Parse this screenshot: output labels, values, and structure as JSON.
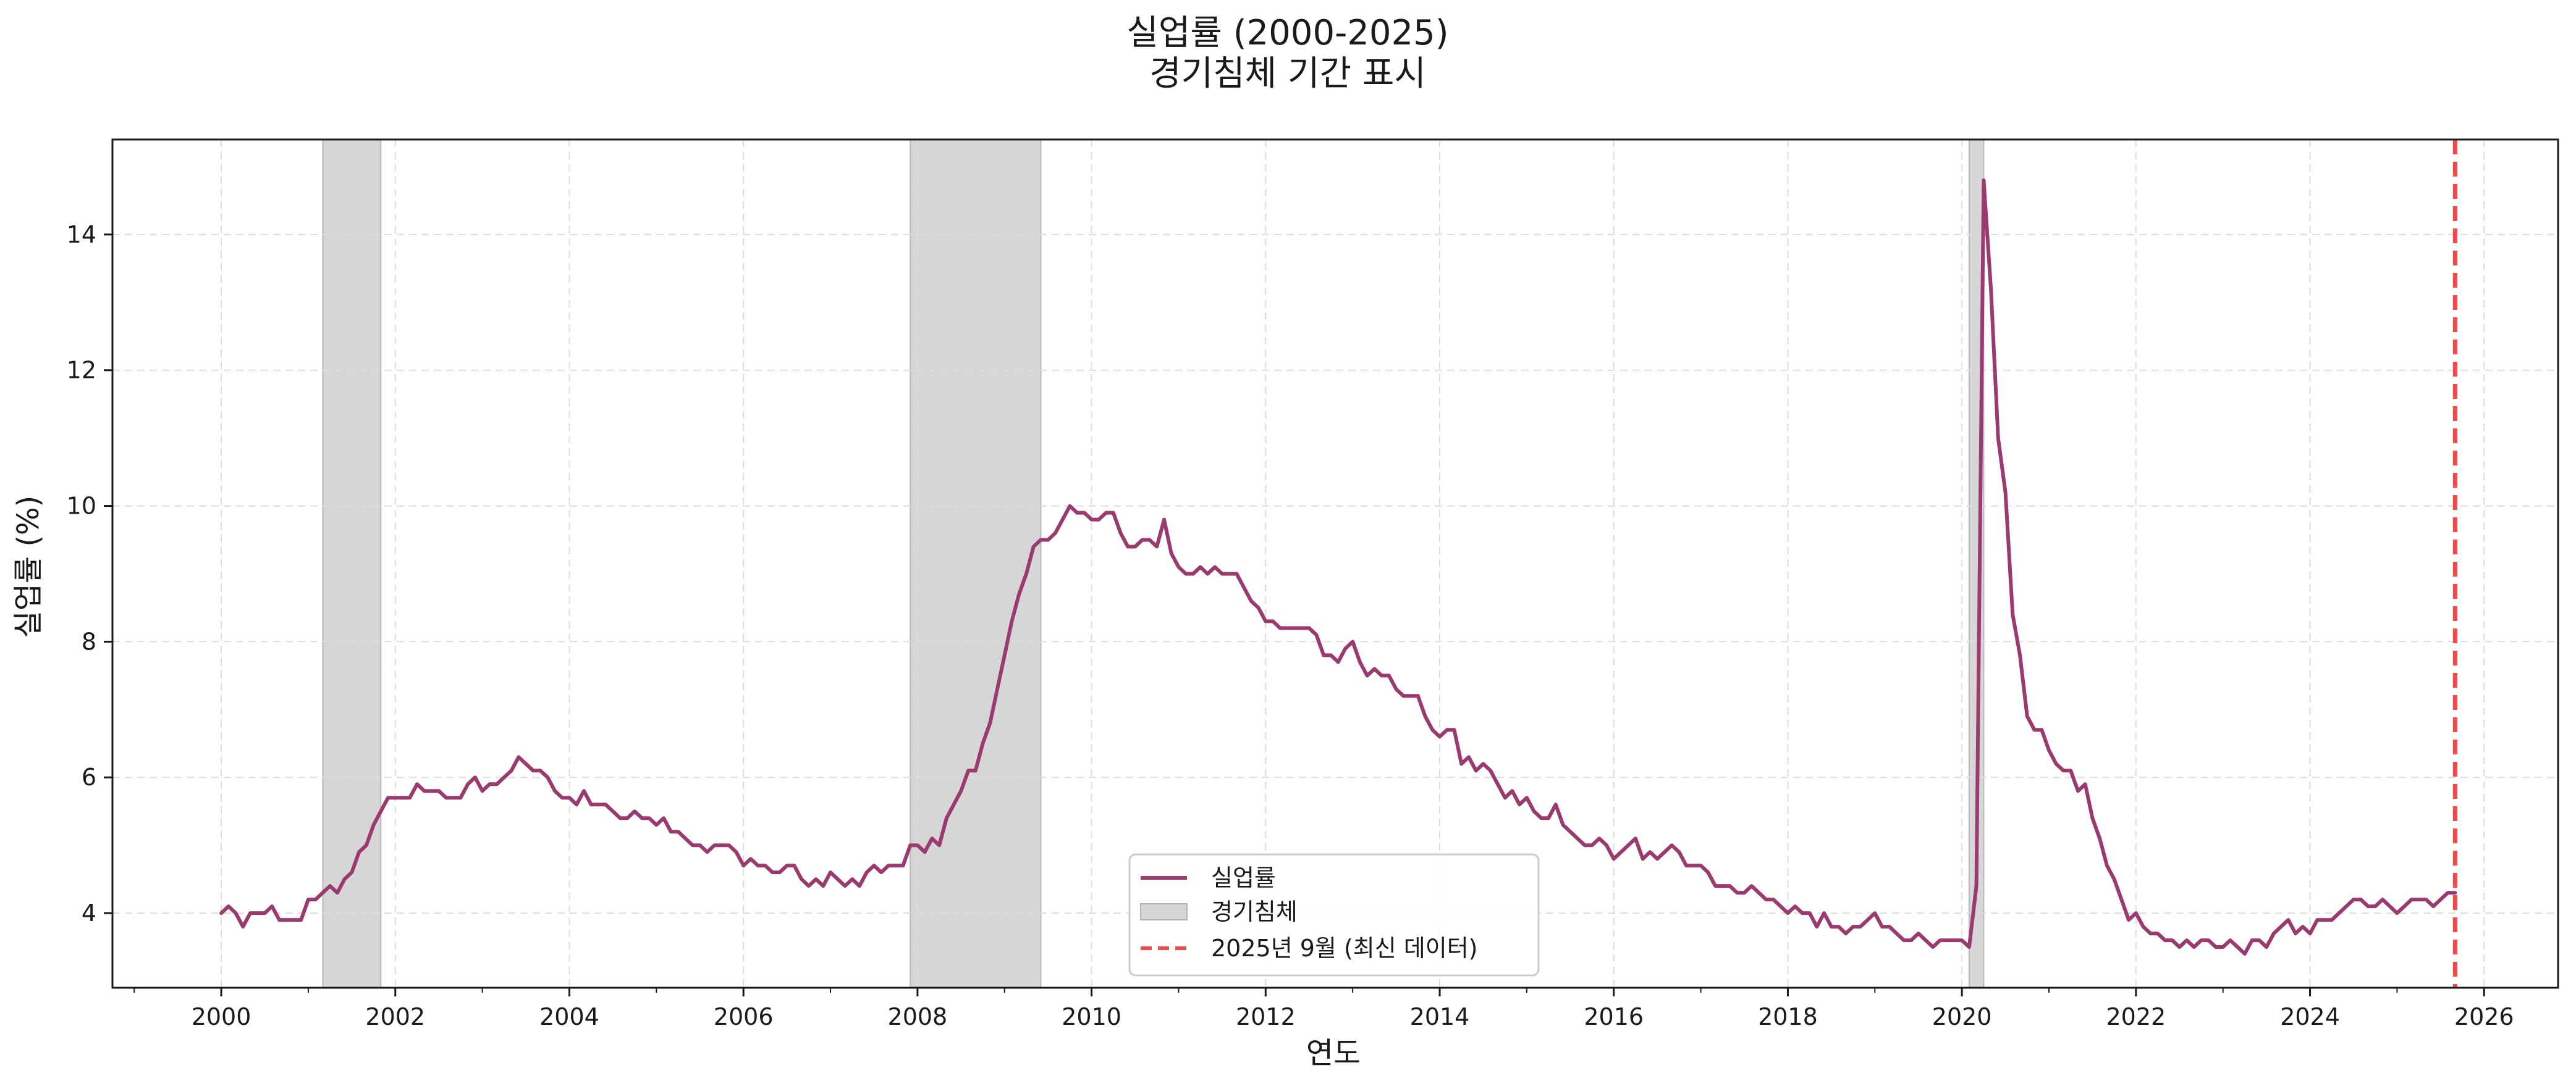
{
  "chart_data": {
    "type": "line",
    "title": "실업률 (2000-2025)",
    "subtitle": "경기침체 기간 표시",
    "xlabel": "연도",
    "ylabel": "실업률 (%)",
    "xlim": [
      1998.75,
      2026.85
    ],
    "ylim": [
      2.9,
      15.4
    ],
    "x_ticks": [
      2000,
      2002,
      2004,
      2006,
      2008,
      2010,
      2012,
      2014,
      2016,
      2018,
      2020,
      2022,
      2024,
      2026
    ],
    "y_ticks": [
      4,
      6,
      8,
      10,
      12,
      14
    ],
    "grid": true,
    "legend_position": "bottom-center",
    "legend": [
      "실업률",
      "경기침체",
      "2025년 9월 (최신 데이터)"
    ],
    "colors": {
      "line": "#9b3a6e",
      "recession": "#d6d6d6",
      "latest": "#f04a4a"
    },
    "recessions": [
      {
        "start": "2001-03",
        "end": "2001-11"
      },
      {
        "start": "2007-12",
        "end": "2009-06"
      },
      {
        "start": "2020-02",
        "end": "2020-04"
      }
    ],
    "latest_marker": "2025-09",
    "series": [
      {
        "name": "실업률",
        "start": "2000-01",
        "frequency": "monthly",
        "values": [
          4.0,
          4.1,
          4.0,
          3.8,
          4.0,
          4.0,
          4.0,
          4.1,
          3.9,
          3.9,
          3.9,
          3.9,
          4.2,
          4.2,
          4.3,
          4.4,
          4.3,
          4.5,
          4.6,
          4.9,
          5.0,
          5.3,
          5.5,
          5.7,
          5.7,
          5.7,
          5.7,
          5.9,
          5.8,
          5.8,
          5.8,
          5.7,
          5.7,
          5.7,
          5.9,
          6.0,
          5.8,
          5.9,
          5.9,
          6.0,
          6.1,
          6.3,
          6.2,
          6.1,
          6.1,
          6.0,
          5.8,
          5.7,
          5.7,
          5.6,
          5.8,
          5.6,
          5.6,
          5.6,
          5.5,
          5.4,
          5.4,
          5.5,
          5.4,
          5.4,
          5.3,
          5.4,
          5.2,
          5.2,
          5.1,
          5.0,
          5.0,
          4.9,
          5.0,
          5.0,
          5.0,
          4.9,
          4.7,
          4.8,
          4.7,
          4.7,
          4.6,
          4.6,
          4.7,
          4.7,
          4.5,
          4.4,
          4.5,
          4.4,
          4.6,
          4.5,
          4.4,
          4.5,
          4.4,
          4.6,
          4.7,
          4.6,
          4.7,
          4.7,
          4.7,
          5.0,
          5.0,
          4.9,
          5.1,
          5.0,
          5.4,
          5.6,
          5.8,
          6.1,
          6.1,
          6.5,
          6.8,
          7.3,
          7.8,
          8.3,
          8.7,
          9.0,
          9.4,
          9.5,
          9.5,
          9.6,
          9.8,
          10.0,
          9.9,
          9.9,
          9.8,
          9.8,
          9.9,
          9.9,
          9.6,
          9.4,
          9.4,
          9.5,
          9.5,
          9.4,
          9.8,
          9.3,
          9.1,
          9.0,
          9.0,
          9.1,
          9.0,
          9.1,
          9.0,
          9.0,
          9.0,
          8.8,
          8.6,
          8.5,
          8.3,
          8.3,
          8.2,
          8.2,
          8.2,
          8.2,
          8.2,
          8.1,
          7.8,
          7.8,
          7.7,
          7.9,
          8.0,
          7.7,
          7.5,
          7.6,
          7.5,
          7.5,
          7.3,
          7.2,
          7.2,
          7.2,
          6.9,
          6.7,
          6.6,
          6.7,
          6.7,
          6.2,
          6.3,
          6.1,
          6.2,
          6.1,
          5.9,
          5.7,
          5.8,
          5.6,
          5.7,
          5.5,
          5.4,
          5.4,
          5.6,
          5.3,
          5.2,
          5.1,
          5.0,
          5.0,
          5.1,
          5.0,
          4.8,
          4.9,
          5.0,
          5.1,
          4.8,
          4.9,
          4.8,
          4.9,
          5.0,
          4.9,
          4.7,
          4.7,
          4.7,
          4.6,
          4.4,
          4.4,
          4.4,
          4.3,
          4.3,
          4.4,
          4.3,
          4.2,
          4.2,
          4.1,
          4.0,
          4.1,
          4.0,
          4.0,
          3.8,
          4.0,
          3.8,
          3.8,
          3.7,
          3.8,
          3.8,
          3.9,
          4.0,
          3.8,
          3.8,
          3.7,
          3.6,
          3.6,
          3.7,
          3.6,
          3.5,
          3.6,
          3.6,
          3.6,
          3.6,
          3.5,
          4.4,
          14.8,
          13.2,
          11.0,
          10.2,
          8.4,
          7.8,
          6.9,
          6.7,
          6.7,
          6.4,
          6.2,
          6.1,
          6.1,
          5.8,
          5.9,
          5.4,
          5.1,
          4.7,
          4.5,
          4.2,
          3.9,
          4.0,
          3.8,
          3.7,
          3.7,
          3.6,
          3.6,
          3.5,
          3.6,
          3.5,
          3.6,
          3.6,
          3.5,
          3.5,
          3.6,
          3.5,
          3.4,
          3.6,
          3.6,
          3.5,
          3.7,
          3.8,
          3.9,
          3.7,
          3.8,
          3.7,
          3.9,
          3.9,
          3.9,
          4.0,
          4.1,
          4.2,
          4.2,
          4.1,
          4.1,
          4.2,
          4.1,
          4.0,
          4.1,
          4.2,
          4.2,
          4.2,
          4.1,
          4.2,
          4.3,
          4.3
        ]
      }
    ]
  }
}
